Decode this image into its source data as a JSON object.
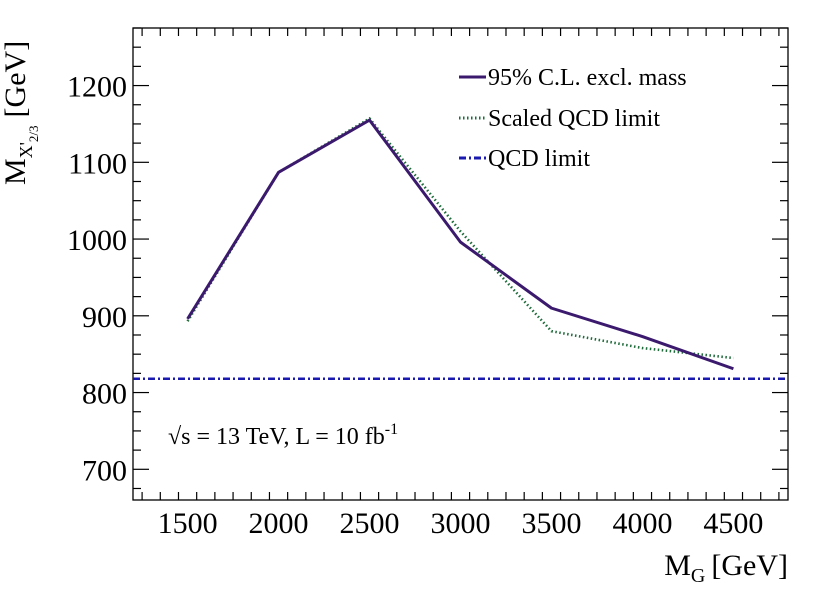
{
  "chart_data": {
    "type": "line",
    "xlabel": "M",
    "xlabel_sub": "G",
    "xlabel_unit": "[GeV]",
    "ylabel": "M",
    "ylabel_sub": "X'",
    "ylabel_subsub": "2/3",
    "ylabel_unit": "[GeV]",
    "xlim": [
      1200,
      4800
    ],
    "ylim": [
      660,
      1275
    ],
    "xticks": [
      1500,
      2000,
      2500,
      3000,
      3500,
      4000,
      4500
    ],
    "yticks": [
      700,
      800,
      900,
      1000,
      1100,
      1200
    ],
    "grid": false,
    "legend_position": "top-right",
    "series": [
      {
        "name": "95% C.L. excl. mass",
        "style": "solid",
        "color": "#3b1a6e",
        "x": [
          1500,
          2000,
          2500,
          3000,
          3500,
          4000,
          4500
        ],
        "y": [
          896,
          1087,
          1155,
          996,
          910,
          873,
          831
        ]
      },
      {
        "name": "Scaled QCD limit",
        "style": "dotted",
        "color": "#1e6b3a",
        "x": [
          1500,
          2000,
          2500,
          3000,
          3500,
          4000,
          4500
        ],
        "y": [
          893,
          1087,
          1157,
          1010,
          880,
          858,
          845
        ]
      },
      {
        "name": "QCD limit",
        "style": "dashdot",
        "color": "#1a1ab0",
        "y_constant": 818
      }
    ],
    "annotation": {
      "sqrt_symbol": "√",
      "text_main": "s = 13 TeV, L = 10 fb",
      "text_sup": "-1"
    }
  }
}
